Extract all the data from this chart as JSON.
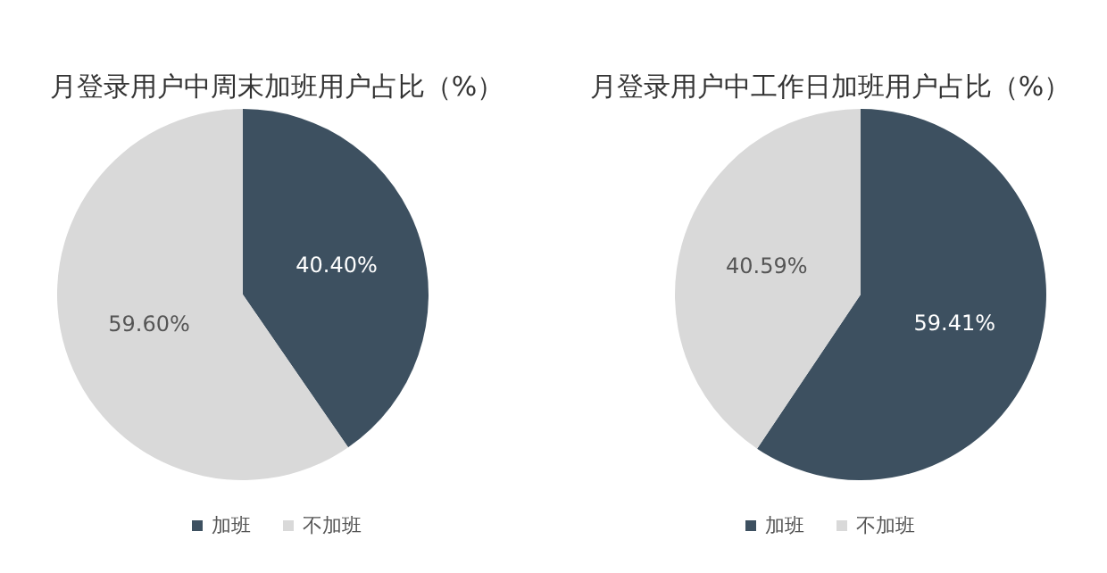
{
  "chart_data": [
    {
      "type": "pie",
      "title": "月登录用户中周末加班用户占比（%）",
      "categories": [
        "加班",
        "不加班"
      ],
      "values": [
        40.4,
        59.6
      ],
      "colors": [
        "#3d5060",
        "#d9d9d9"
      ],
      "value_labels": [
        "40.40%",
        "59.60%"
      ],
      "legend": "bottom"
    },
    {
      "type": "pie",
      "title": "月登录用户中工作日加班用户占比（%）",
      "categories": [
        "加班",
        "不加班"
      ],
      "values": [
        59.41,
        40.59
      ],
      "colors": [
        "#3d5060",
        "#d9d9d9"
      ],
      "value_labels": [
        "59.41%",
        "40.59%"
      ],
      "legend": "bottom"
    }
  ]
}
